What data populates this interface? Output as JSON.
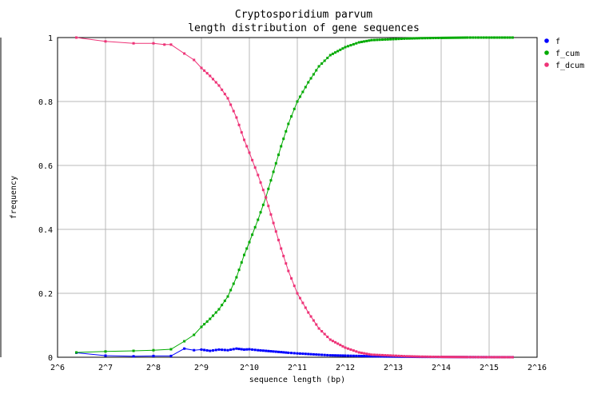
{
  "chart_data": {
    "type": "line",
    "title": [
      "Cryptosporidium parvum",
      "length distribution of gene sequences"
    ],
    "xlabel": "sequence length (bp)",
    "ylabel": "frequency",
    "x_scale": "log2",
    "xlim": [
      64,
      65536
    ],
    "ylim": [
      0,
      1
    ],
    "x_ticks": [
      64,
      128,
      256,
      512,
      1024,
      2048,
      4096,
      8192,
      16384,
      32768,
      65536
    ],
    "x_tick_labels": [
      "2^6",
      "2^7",
      "2^8",
      "2^9",
      "2^10",
      "2^11",
      "2^12",
      "2^13",
      "2^14",
      "2^15",
      "2^16"
    ],
    "y_ticks": [
      0,
      0.2,
      0.4,
      0.6,
      0.8,
      1
    ],
    "y_tick_labels": [
      "0",
      "0.2",
      "0.4",
      "0.6",
      "0.8",
      "1"
    ],
    "grid": true,
    "legend_position": "top-right",
    "series": [
      {
        "name": "f",
        "color": "#0000ff",
        "points": [
          [
            84,
            0.014
          ],
          [
            128,
            0.005
          ],
          [
            192,
            0.003
          ],
          [
            256,
            0.004
          ],
          [
            330,
            0.004
          ],
          [
            400,
            0.027
          ],
          [
            460,
            0.022
          ],
          [
            512,
            0.024
          ],
          [
            580,
            0.02
          ],
          [
            660,
            0.024
          ],
          [
            750,
            0.022
          ],
          [
            850,
            0.027
          ],
          [
            950,
            0.024
          ],
          [
            1024,
            0.025
          ],
          [
            1160,
            0.022
          ],
          [
            1300,
            0.02
          ],
          [
            1450,
            0.018
          ],
          [
            1620,
            0.016
          ],
          [
            1800,
            0.014
          ],
          [
            2048,
            0.012
          ],
          [
            2400,
            0.01
          ],
          [
            2800,
            0.008
          ],
          [
            3300,
            0.006
          ],
          [
            4096,
            0.005
          ],
          [
            5000,
            0.004
          ],
          [
            6000,
            0.003
          ],
          [
            8192,
            0.002
          ],
          [
            10000,
            0.0015
          ],
          [
            12000,
            0.001
          ],
          [
            16384,
            0.0008
          ],
          [
            24000,
            0.0005
          ],
          [
            32768,
            0.0003
          ],
          [
            46000,
            0.0002
          ]
        ]
      },
      {
        "name": "f_cum",
        "color": "#00aa00",
        "points": [
          [
            84,
            0.015
          ],
          [
            128,
            0.018
          ],
          [
            192,
            0.02
          ],
          [
            256,
            0.022
          ],
          [
            330,
            0.025
          ],
          [
            400,
            0.05
          ],
          [
            460,
            0.07
          ],
          [
            512,
            0.095
          ],
          [
            580,
            0.12
          ],
          [
            660,
            0.15
          ],
          [
            750,
            0.19
          ],
          [
            850,
            0.25
          ],
          [
            950,
            0.32
          ],
          [
            1024,
            0.36
          ],
          [
            1160,
            0.43
          ],
          [
            1300,
            0.5
          ],
          [
            1450,
            0.58
          ],
          [
            1620,
            0.66
          ],
          [
            1800,
            0.73
          ],
          [
            2048,
            0.8
          ],
          [
            2400,
            0.86
          ],
          [
            2800,
            0.91
          ],
          [
            3300,
            0.945
          ],
          [
            4096,
            0.97
          ],
          [
            5000,
            0.985
          ],
          [
            6000,
            0.992
          ],
          [
            8192,
            0.995
          ],
          [
            10000,
            0.997
          ],
          [
            12000,
            0.998
          ],
          [
            16384,
            0.999
          ],
          [
            24000,
            1.0
          ],
          [
            32768,
            1.0
          ],
          [
            46000,
            1.0
          ]
        ]
      },
      {
        "name": "f_dcum",
        "color": "#ee3377",
        "points": [
          [
            84,
            1.0
          ],
          [
            128,
            0.988
          ],
          [
            192,
            0.982
          ],
          [
            256,
            0.982
          ],
          [
            300,
            0.978
          ],
          [
            330,
            0.978
          ],
          [
            400,
            0.95
          ],
          [
            460,
            0.93
          ],
          [
            512,
            0.905
          ],
          [
            580,
            0.88
          ],
          [
            660,
            0.85
          ],
          [
            750,
            0.81
          ],
          [
            850,
            0.75
          ],
          [
            950,
            0.68
          ],
          [
            1024,
            0.64
          ],
          [
            1160,
            0.57
          ],
          [
            1300,
            0.5
          ],
          [
            1450,
            0.42
          ],
          [
            1620,
            0.34
          ],
          [
            1800,
            0.27
          ],
          [
            2048,
            0.2
          ],
          [
            2400,
            0.14
          ],
          [
            2800,
            0.09
          ],
          [
            3300,
            0.055
          ],
          [
            4096,
            0.03
          ],
          [
            5000,
            0.015
          ],
          [
            6000,
            0.008
          ],
          [
            8192,
            0.005
          ],
          [
            10000,
            0.003
          ],
          [
            12000,
            0.002
          ],
          [
            16384,
            0.001
          ],
          [
            24000,
            0.0005
          ],
          [
            32768,
            0.0002
          ],
          [
            46000,
            0.0001
          ]
        ]
      }
    ]
  }
}
